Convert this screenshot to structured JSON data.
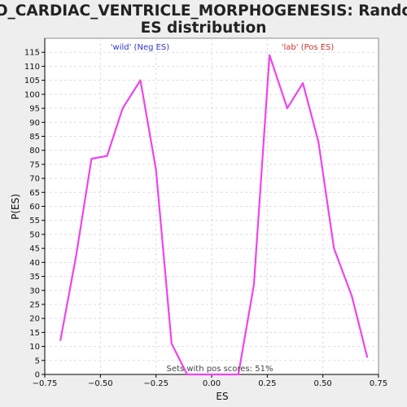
{
  "chart_data": {
    "type": "line",
    "title": "GO_CARDIAC_VENTRICLE_MORPHOGENESIS: Random ES distribution",
    "title_lines": [
      "GO_CARDIAC_VENTRICLE_MORPHOGENESIS: Random",
      "ES distribution"
    ],
    "xlabel": "ES",
    "ylabel": "P(ES)",
    "xlim": [
      -0.75,
      0.75
    ],
    "ylim": [
      0,
      120
    ],
    "x_ticks": [
      -0.75,
      -0.5,
      -0.25,
      0,
      0.25,
      0.5,
      0.75
    ],
    "x_tick_labels": [
      "−0.75",
      "−0.50",
      "−0.25",
      "0.00",
      "0.25",
      "0.50",
      "0.75"
    ],
    "y_ticks": [
      0,
      5,
      10,
      15,
      20,
      25,
      30,
      35,
      40,
      45,
      50,
      55,
      60,
      65,
      70,
      75,
      80,
      85,
      90,
      95,
      100,
      105,
      110,
      115
    ],
    "grid": true,
    "annotations": {
      "neg": "'wild' (Neg ES)",
      "pos": "'lab' (Pos ES)",
      "footer": "Sets with pos scores: 51%"
    },
    "series": [
      {
        "color": "#ee44ee",
        "x": [
          -0.68,
          -0.61,
          -0.54,
          -0.47,
          -0.4,
          -0.32,
          -0.25,
          -0.18,
          -0.11,
          -0.05,
          0.02,
          0.12,
          0.19,
          0.26,
          0.34,
          0.41,
          0.48,
          0.55,
          0.63,
          0.7
        ],
        "y": [
          12,
          42,
          77,
          78,
          95,
          105,
          73,
          11,
          0,
          0,
          0,
          0,
          32,
          114,
          95,
          104,
          83,
          45,
          28,
          6
        ]
      }
    ],
    "colors": {
      "line": "#ee44ee",
      "neg_label": "#3333cc",
      "pos_label": "#cc3333",
      "grid": "#dddddd",
      "axis": "#000000"
    }
  }
}
